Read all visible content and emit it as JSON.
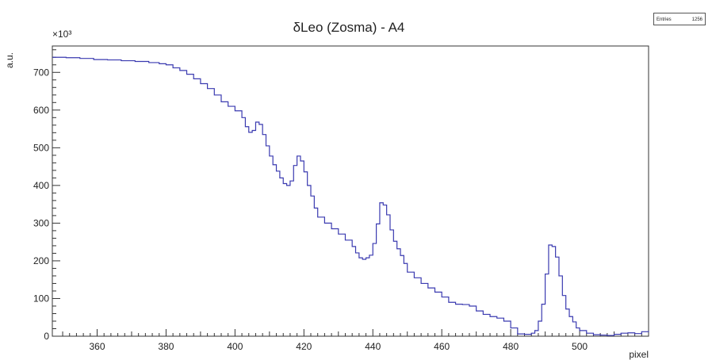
{
  "stats": {
    "entries_label": "Entries",
    "entries_value": "1256"
  },
  "chart_data": {
    "type": "line",
    "title": "δLeo (Zosma) - A4",
    "xlabel": "pixel",
    "ylabel": "a.u.",
    "yexponent_label": "×10³",
    "xlim": [
      347,
      520
    ],
    "ylim": [
      0,
      770000
    ],
    "xticks": [
      360,
      380,
      400,
      420,
      440,
      460,
      480,
      500
    ],
    "yticks": [
      0,
      100000,
      200000,
      300000,
      400000,
      500000,
      600000,
      700000
    ],
    "ytick_labels": [
      "0",
      "100",
      "200",
      "300",
      "400",
      "500",
      "600",
      "700"
    ],
    "grid": false,
    "line_color": "#3a3ab0",
    "series": [
      {
        "name": "",
        "x": [
          347,
          351,
          355,
          359,
          363,
          367,
          371,
          375,
          378,
          380,
          382,
          384,
          386,
          388,
          390,
          392,
          394,
          396,
          398,
          400,
          402,
          403,
          404,
          405,
          406,
          407,
          408,
          409,
          410,
          411,
          412,
          413,
          414,
          415,
          416,
          417,
          418,
          419,
          420,
          421,
          422,
          423,
          424,
          426,
          428,
          430,
          432,
          434,
          435,
          436,
          437,
          438,
          439,
          440,
          441,
          442,
          443,
          444,
          445,
          446,
          447,
          448,
          449,
          450,
          452,
          454,
          456,
          458,
          460,
          462,
          464,
          466,
          468,
          470,
          472,
          474,
          476,
          478,
          480,
          482,
          484,
          486,
          487,
          488,
          489,
          490,
          491,
          492,
          493,
          494,
          495,
          496,
          497,
          498,
          499,
          500,
          502,
          504,
          506,
          508,
          510,
          512,
          514,
          516,
          518,
          520
        ],
        "y": [
          740000,
          739000,
          737000,
          734000,
          733000,
          731000,
          729000,
          726000,
          723000,
          720000,
          712000,
          705000,
          695000,
          683000,
          670000,
          657000,
          640000,
          622000,
          610000,
          598000,
          580000,
          556000,
          541000,
          546000,
          568000,
          562000,
          535000,
          505000,
          478000,
          455000,
          438000,
          420000,
          405000,
          400000,
          412000,
          453000,
          478000,
          465000,
          436000,
          400000,
          372000,
          340000,
          316000,
          300000,
          285000,
          271000,
          255000,
          238000,
          221000,
          208000,
          204000,
          208000,
          215000,
          246000,
          298000,
          354000,
          348000,
          322000,
          282000,
          252000,
          232000,
          214000,
          193000,
          170000,
          155000,
          140000,
          128000,
          117000,
          104000,
          90000,
          85000,
          84000,
          80000,
          67000,
          58000,
          52000,
          48000,
          40000,
          22000,
          6000,
          5000,
          8000,
          15000,
          40000,
          85000,
          165000,
          242000,
          238000,
          210000,
          160000,
          108000,
          72000,
          52000,
          38000,
          22000,
          15000,
          8000,
          4000,
          3000,
          2000,
          5000,
          8000,
          9000,
          7000,
          12000,
          14000
        ]
      }
    ]
  }
}
